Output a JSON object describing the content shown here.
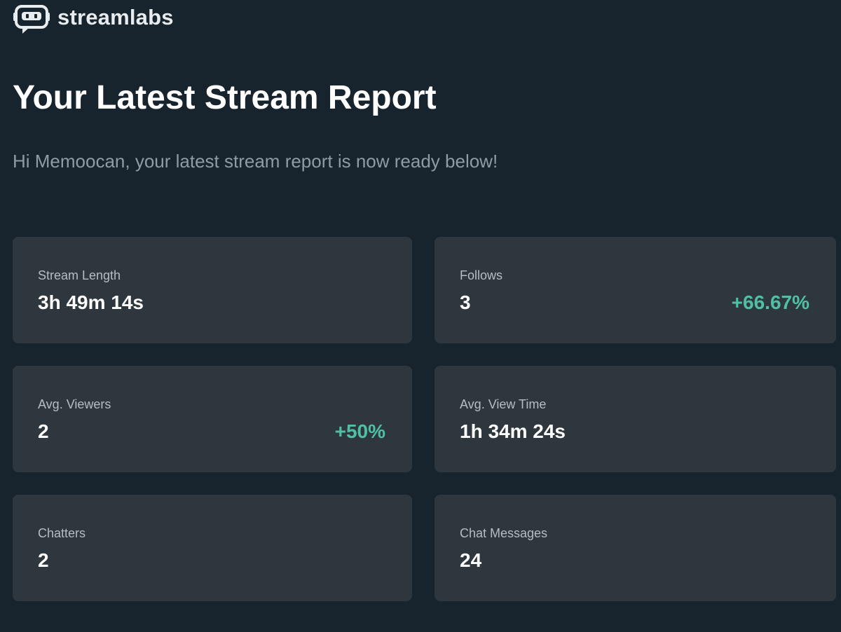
{
  "brand": {
    "name": "streamlabs",
    "logo_icon": "streamlabs-robot-logo-icon",
    "color": "#e8ecee"
  },
  "page": {
    "title": "Your Latest Stream Report",
    "subtitle": "Hi Memoocan, your latest stream report is now ready below!"
  },
  "colors": {
    "background": "#17242d",
    "card": "#2e363e",
    "positive_change": "#4fc1a1",
    "label": "#b6bec4",
    "subtitle": "#909ba3"
  },
  "stats": [
    {
      "label": "Stream Length",
      "value": "3h 49m 14s",
      "change": ""
    },
    {
      "label": "Follows",
      "value": "3",
      "change": "+66.67%"
    },
    {
      "label": "Avg. Viewers",
      "value": "2",
      "change": "+50%"
    },
    {
      "label": "Avg. View Time",
      "value": "1h 34m 24s",
      "change": ""
    },
    {
      "label": "Chatters",
      "value": "2",
      "change": ""
    },
    {
      "label": "Chat Messages",
      "value": "24",
      "change": ""
    }
  ]
}
